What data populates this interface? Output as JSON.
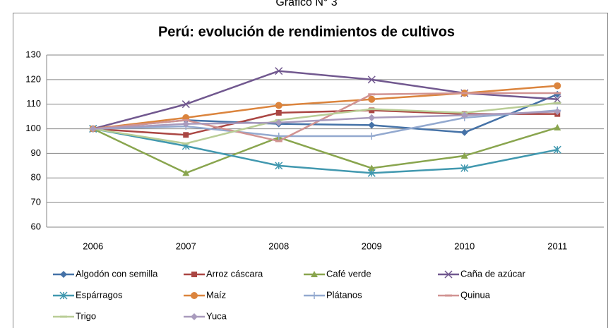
{
  "chart_data": {
    "type": "line",
    "supertitle": "Gráfico N° 3",
    "title": "Perú: evolución de rendimientos de cultivos",
    "categories": [
      "2006",
      "2007",
      "2008",
      "2009",
      "2010",
      "2011"
    ],
    "ylim": [
      60,
      130
    ],
    "yticks": [
      60,
      70,
      80,
      90,
      100,
      110,
      120,
      130
    ],
    "grid": true,
    "legend": "bottom",
    "series": [
      {
        "name": "Algodón con semilla",
        "color": "#4572a7",
        "marker": "diamond",
        "values": [
          100,
          103.5,
          102,
          101.5,
          98.5,
          114
        ]
      },
      {
        "name": "Arroz cáscara",
        "color": "#aa4643",
        "marker": "square",
        "values": [
          100,
          97.5,
          106.5,
          107.5,
          106,
          106
        ]
      },
      {
        "name": "Café verde",
        "color": "#89a54e",
        "marker": "triangle",
        "values": [
          100,
          82,
          96.5,
          84,
          89,
          100.5
        ]
      },
      {
        "name": "Caña de azúcar",
        "color": "#71588f",
        "marker": "x",
        "values": [
          100,
          110,
          123.5,
          120,
          114.5,
          112
        ]
      },
      {
        "name": "Espárragos",
        "color": "#4198af",
        "marker": "star",
        "values": [
          100,
          93,
          85,
          82,
          84,
          91.5
        ]
      },
      {
        "name": "Maíz",
        "color": "#db843d",
        "marker": "circle",
        "values": [
          100,
          104.5,
          109.5,
          112,
          114.5,
          117.5
        ]
      },
      {
        "name": "Plátanos",
        "color": "#93a9cf",
        "marker": "plus",
        "values": [
          100,
          101,
          97,
          97,
          104.5,
          107.5
        ]
      },
      {
        "name": "Quinua",
        "color": "#d19392",
        "marker": "dash",
        "values": [
          100,
          103.5,
          95,
          114,
          114.5,
          114.5
        ]
      },
      {
        "name": "Trigo",
        "color": "#b9cd96",
        "marker": "dash",
        "values": [
          100,
          94,
          103.5,
          108,
          106.5,
          110.5
        ]
      },
      {
        "name": "Yuca",
        "color": "#a99bbd",
        "marker": "diamond",
        "values": [
          100,
          102,
          102.5,
          104.5,
          105.5,
          107
        ]
      }
    ]
  }
}
